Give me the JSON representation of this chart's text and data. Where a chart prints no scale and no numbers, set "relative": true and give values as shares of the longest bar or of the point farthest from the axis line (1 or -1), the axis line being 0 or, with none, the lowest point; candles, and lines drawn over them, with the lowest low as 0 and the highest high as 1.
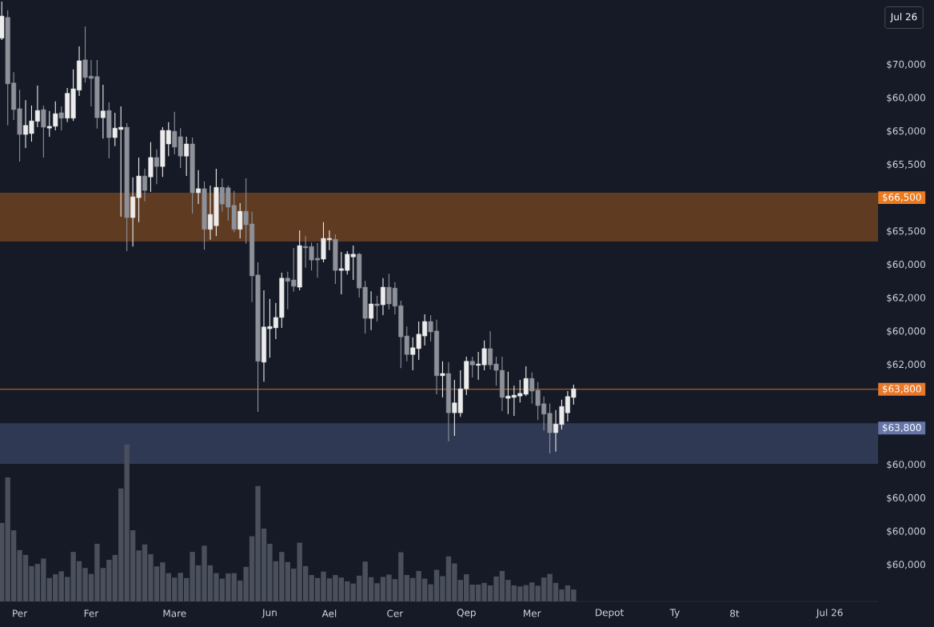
{
  "chart_data": [
    {
      "type": "candlestick",
      "relative": true,
      "categories": [
        null,
        null,
        null,
        null,
        null,
        null,
        null,
        null,
        null,
        null,
        null,
        null,
        null,
        null,
        null,
        null,
        null,
        null,
        null,
        null,
        null,
        null,
        null,
        null,
        null,
        null,
        null,
        null,
        null,
        null,
        null,
        null,
        null,
        null,
        null,
        null,
        null,
        null,
        null,
        null,
        null,
        null,
        null,
        null,
        null,
        null,
        null,
        null,
        null,
        null,
        null,
        null,
        null,
        null,
        null,
        null,
        null,
        null,
        null,
        null,
        null,
        null,
        null,
        null,
        null,
        null,
        null,
        null,
        null,
        null,
        null,
        null,
        null,
        null,
        null,
        null,
        null,
        null,
        null,
        null,
        null,
        null,
        null,
        null,
        null,
        null,
        null,
        null,
        null,
        null,
        null,
        null,
        null,
        null,
        null,
        null,
        null,
        null,
        null,
        null,
        null,
        null,
        null,
        null,
        null,
        null,
        null,
        null,
        null,
        null,
        null,
        null,
        null,
        null,
        null,
        null,
        null,
        null,
        null,
        null,
        null,
        null,
        null,
        null,
        null,
        null,
        null,
        null,
        null,
        null,
        null,
        null,
        null,
        null,
        null,
        null,
        null,
        null,
        null,
        null,
        null,
        null,
        null,
        null,
        null,
        null,
        null
      ],
      "ohlc": [
        [
          0.919,
          1.0,
          0.915,
          0.968
        ],
        [
          0.965,
          0.981,
          0.726,
          0.818
        ],
        [
          0.82,
          0.844,
          0.738,
          0.761
        ],
        [
          0.763,
          0.805,
          0.646,
          0.706
        ],
        [
          0.706,
          0.782,
          0.676,
          0.726
        ],
        [
          0.708,
          0.77,
          0.69,
          0.736
        ],
        [
          0.735,
          0.814,
          0.722,
          0.759
        ],
        [
          0.761,
          0.77,
          0.655,
          0.722
        ],
        [
          0.72,
          0.758,
          0.701,
          0.724
        ],
        [
          0.724,
          0.779,
          0.715,
          0.752
        ],
        [
          0.754,
          0.768,
          0.715,
          0.742
        ],
        [
          0.742,
          0.809,
          0.733,
          0.797
        ],
        [
          0.742,
          0.85,
          0.736,
          0.807
        ],
        [
          0.804,
          0.901,
          0.791,
          0.869
        ],
        [
          0.871,
          0.945,
          0.821,
          0.832
        ],
        [
          0.835,
          0.871,
          0.768,
          0.83
        ],
        [
          0.834,
          0.871,
          0.719,
          0.743
        ],
        [
          0.743,
          0.816,
          0.697,
          0.758
        ],
        [
          0.759,
          0.777,
          0.653,
          0.699
        ],
        [
          0.699,
          0.754,
          0.68,
          0.72
        ],
        [
          0.717,
          0.768,
          0.524,
          0.722
        ],
        [
          0.722,
          0.731,
          0.448,
          0.522
        ],
        [
          0.522,
          0.611,
          0.458,
          0.568
        ],
        [
          0.566,
          0.655,
          0.512,
          0.614
        ],
        [
          0.614,
          0.63,
          0.558,
          0.582
        ],
        [
          0.612,
          0.689,
          0.579,
          0.655
        ],
        [
          0.655,
          0.673,
          0.596,
          0.635
        ],
        [
          0.635,
          0.722,
          0.612,
          0.715
        ],
        [
          0.685,
          0.733,
          0.658,
          0.715
        ],
        [
          0.713,
          0.756,
          0.662,
          0.678
        ],
        [
          0.701,
          0.72,
          0.632,
          0.658
        ],
        [
          0.658,
          0.701,
          0.614,
          0.685
        ],
        [
          0.685,
          0.699,
          0.531,
          0.577
        ],
        [
          0.577,
          0.627,
          0.552,
          0.586
        ],
        [
          0.586,
          0.602,
          0.451,
          0.496
        ],
        [
          0.496,
          0.593,
          0.473,
          0.529
        ],
        [
          0.504,
          0.63,
          0.481,
          0.589
        ],
        [
          0.589,
          0.609,
          0.535,
          0.552
        ],
        [
          0.588,
          0.593,
          0.515,
          0.545
        ],
        [
          0.549,
          0.581,
          0.49,
          0.496
        ],
        [
          0.496,
          0.554,
          0.476,
          0.536
        ],
        [
          0.536,
          0.609,
          0.464,
          0.506
        ],
        [
          0.508,
          0.535,
          0.335,
          0.393
        ],
        [
          0.395,
          0.423,
          0.092,
          0.204
        ],
        [
          0.202,
          0.361,
          0.159,
          0.28
        ],
        [
          0.276,
          0.342,
          0.212,
          0.281
        ],
        [
          0.278,
          0.333,
          0.253,
          0.301
        ],
        [
          0.301,
          0.4,
          0.278,
          0.388
        ],
        [
          0.388,
          0.402,
          0.319,
          0.381
        ],
        [
          0.384,
          0.455,
          0.358,
          0.37
        ],
        [
          0.368,
          0.494,
          0.361,
          0.46
        ],
        [
          0.458,
          0.481,
          0.411,
          0.455
        ],
        [
          0.458,
          0.467,
          0.405,
          0.428
        ],
        [
          0.432,
          0.466,
          0.389,
          0.428
        ],
        [
          0.43,
          0.512,
          0.423,
          0.476
        ],
        [
          0.473,
          0.494,
          0.45,
          0.476
        ],
        [
          0.474,
          0.485,
          0.375,
          0.405
        ],
        [
          0.405,
          0.446,
          0.352,
          0.409
        ],
        [
          0.405,
          0.448,
          0.396,
          0.441
        ],
        [
          0.435,
          0.46,
          0.384,
          0.441
        ],
        [
          0.441,
          0.444,
          0.345,
          0.366
        ],
        [
          0.368,
          0.382,
          0.265,
          0.299
        ],
        [
          0.299,
          0.359,
          0.273,
          0.331
        ],
        [
          0.331,
          0.349,
          0.292,
          0.327
        ],
        [
          0.329,
          0.388,
          0.306,
          0.368
        ],
        [
          0.368,
          0.398,
          0.319,
          0.331
        ],
        [
          0.366,
          0.379,
          0.308,
          0.326
        ],
        [
          0.327,
          0.338,
          0.189,
          0.258
        ],
        [
          0.26,
          0.281,
          0.204,
          0.219
        ],
        [
          0.219,
          0.257,
          0.184,
          0.234
        ],
        [
          0.232,
          0.292,
          0.207,
          0.264
        ],
        [
          0.26,
          0.308,
          0.239,
          0.292
        ],
        [
          0.292,
          0.306,
          0.248,
          0.269
        ],
        [
          0.271,
          0.296,
          0.131,
          0.172
        ],
        [
          0.172,
          0.204,
          0.124,
          0.177
        ],
        [
          0.177,
          0.202,
          0.027,
          0.09
        ],
        [
          0.09,
          0.163,
          0.039,
          0.112
        ],
        [
          0.09,
          0.184,
          0.081,
          0.143
        ],
        [
          0.143,
          0.214,
          0.129,
          0.204
        ],
        [
          0.204,
          0.214,
          0.168,
          0.196
        ],
        [
          0.195,
          0.225,
          0.163,
          0.198
        ],
        [
          0.196,
          0.25,
          0.184,
          0.232
        ],
        [
          0.232,
          0.271,
          0.186,
          0.196
        ],
        [
          0.198,
          0.214,
          0.15,
          0.184
        ],
        [
          0.184,
          0.214,
          0.094,
          0.124
        ],
        [
          0.122,
          0.181,
          0.087,
          0.127
        ],
        [
          0.124,
          0.15,
          0.083,
          0.129
        ],
        [
          0.127,
          0.163,
          0.113,
          0.133
        ],
        [
          0.131,
          0.193,
          0.127,
          0.166
        ],
        [
          0.166,
          0.179,
          0.11,
          0.138
        ],
        [
          0.14,
          0.158,
          0.074,
          0.106
        ],
        [
          0.11,
          0.126,
          0.051,
          0.087
        ],
        [
          0.089,
          0.11,
          0.0,
          0.046
        ],
        [
          0.046,
          0.096,
          0.004,
          0.065
        ],
        [
          0.064,
          0.119,
          0.053,
          0.104
        ],
        [
          0.09,
          0.138,
          0.071,
          0.126
        ],
        [
          0.124,
          0.152,
          0.108,
          0.143
        ],
        null,
        null,
        null,
        null,
        null,
        null,
        null,
        null,
        null,
        null,
        null,
        null,
        null,
        null,
        null,
        null,
        null,
        null,
        null,
        null,
        null,
        null,
        null,
        null,
        null,
        null,
        null,
        null,
        null,
        null,
        null,
        null,
        null,
        null,
        null,
        null,
        null,
        null,
        null,
        null,
        null,
        null,
        null,
        null,
        null,
        null,
        null,
        null,
        null,
        null
      ],
      "colors": [
        "#ececec",
        "#8e9199",
        "#8e9199",
        "#8e9199",
        "#ececec",
        "#ececec",
        "#ececec",
        "#8e9199",
        "#ececec",
        "#ececec",
        "#8e9199",
        "#ececec",
        "#ececec",
        "#ececec",
        "#8e9199",
        "#8e9199",
        "#8e9199",
        "#ececec",
        "#8e9199",
        "#ececec",
        "#ececec",
        "#8e9199",
        "#ececec",
        "#ececec",
        "#8e9199",
        "#ececec",
        "#8e9199",
        "#ececec",
        "#ececec",
        "#8e9199",
        "#8e9199",
        "#ececec",
        "#8e9199",
        "#ececec",
        "#8e9199",
        "#ececec",
        "#ececec",
        "#8e9199",
        "#8e9199",
        "#8e9199",
        "#ececec",
        "#8e9199",
        "#8e9199",
        "#8e9199",
        "#ececec",
        "#ececec",
        "#ececec",
        "#ececec",
        "#8e9199",
        "#8e9199",
        "#ececec",
        "#8e9199",
        "#8e9199",
        "#8e9199",
        "#ececec",
        "#ececec",
        "#8e9199",
        "#ececec",
        "#ececec",
        "#ececec",
        "#8e9199",
        "#8e9199",
        "#ececec",
        "#8e9199",
        "#ececec",
        "#8e9199",
        "#8e9199",
        "#8e9199",
        "#8e9199",
        "#ececec",
        "#ececec",
        "#ececec",
        "#8e9199",
        "#8e9199",
        "#ececec",
        "#8e9199",
        "#ececec",
        "#ececec",
        "#ececec",
        "#8e9199",
        "#ececec",
        "#ececec",
        "#8e9199",
        "#8e9199",
        "#8e9199",
        "#ececec",
        "#ececec",
        "#ececec",
        "#ececec",
        "#8e9199",
        "#8e9199",
        "#8e9199",
        "#8e9199",
        "#ececec",
        "#ececec",
        "#ececec",
        "#ececec",
        null,
        null,
        null,
        null,
        null,
        null,
        null,
        null,
        null,
        null,
        null,
        null,
        null,
        null,
        null,
        null,
        null,
        null,
        null,
        null,
        null,
        null,
        null,
        null,
        null,
        null,
        null,
        null,
        null,
        null,
        null,
        null,
        null,
        null,
        null,
        null,
        null,
        null,
        null,
        null,
        null,
        null,
        null,
        null,
        null,
        null,
        null,
        null,
        null,
        null
      ],
      "bands": [
        {
          "axis": "y",
          "from": 0.469,
          "to": 0.577,
          "label": "$66,500",
          "color": "#ec7a1e"
        },
        {
          "axis": "y",
          "from": -0.023,
          "to": 0.067,
          "label": "$63,800",
          "color": "#6475a8"
        }
      ],
      "ref_lines": [
        {
          "axis": "y",
          "value": 0.142,
          "color": "#e8782a"
        }
      ],
      "annotations": [
        "Jul 26",
        "$70,000",
        "$60,000",
        "$65,000",
        "$65,500",
        "$65,500",
        "$60,000",
        "$62,000",
        "$60,000",
        "$62,000",
        "$63,800",
        "$60,000",
        "$60,000",
        "$60,000",
        "$60,000"
      ]
    },
    {
      "type": "bar",
      "relative": true,
      "categories": [
        null,
        null,
        null,
        "Per",
        null,
        null,
        null,
        null,
        null,
        null,
        null,
        null,
        null,
        null,
        null,
        "Fer",
        null,
        null,
        null,
        null,
        null,
        null,
        null,
        null,
        null,
        null,
        null,
        null,
        null,
        "Mare",
        null,
        null,
        null,
        null,
        null,
        null,
        null,
        null,
        null,
        null,
        null,
        null,
        null,
        null,
        null,
        "Jun",
        null,
        null,
        null,
        null,
        null,
        null,
        null,
        null,
        null,
        "Ael",
        null,
        null,
        null,
        null,
        null,
        null,
        null,
        null,
        null,
        null,
        "Cer",
        null,
        null,
        null,
        null,
        null,
        null,
        null,
        null,
        null,
        null,
        null,
        "Qep",
        null,
        null,
        null,
        null,
        null,
        null,
        null,
        null,
        null,
        null,
        "Mer",
        null,
        null,
        null,
        null,
        null,
        null,
        null,
        null,
        null,
        null,
        null,
        null,
        "Depot",
        null,
        null,
        null,
        null,
        null,
        null,
        null,
        null,
        null,
        null,
        "Ty",
        null,
        null,
        null,
        null,
        null,
        null,
        null,
        null,
        null,
        "8t",
        null,
        null,
        null,
        null,
        null,
        null,
        null,
        null,
        null,
        null,
        null,
        null,
        null,
        null,
        null,
        "Jul 26",
        null,
        null,
        null,
        null,
        null,
        null,
        null
      ],
      "values": [
        0.5,
        0.789,
        0.453,
        0.327,
        0.296,
        0.225,
        0.239,
        0.273,
        0.149,
        0.173,
        0.192,
        0.156,
        0.315,
        0.256,
        0.213,
        0.175,
        0.367,
        0.213,
        0.265,
        0.296,
        0.72,
        1.0,
        0.453,
        0.325,
        0.363,
        0.301,
        0.223,
        0.249,
        0.18,
        0.152,
        0.182,
        0.149,
        0.315,
        0.23,
        0.355,
        0.23,
        0.18,
        0.145,
        0.178,
        0.18,
        0.133,
        0.22,
        0.415,
        0.735,
        0.464,
        0.367,
        0.256,
        0.315,
        0.251,
        0.209,
        0.374,
        0.225,
        0.168,
        0.149,
        0.19,
        0.147,
        0.168,
        0.152,
        0.128,
        0.114,
        0.164,
        0.254,
        0.154,
        0.116,
        0.156,
        0.171,
        0.142,
        0.313,
        0.168,
        0.149,
        0.194,
        0.145,
        0.109,
        0.201,
        0.161,
        0.287,
        0.242,
        0.137,
        0.173,
        0.107,
        0.107,
        0.118,
        0.102,
        0.159,
        0.194,
        0.137,
        0.102,
        0.095,
        0.104,
        0.121,
        0.1,
        0.152,
        0.175,
        0.118,
        0.076,
        0.102,
        0.076,
        null,
        null,
        null,
        null,
        null,
        null,
        null,
        null,
        null,
        null,
        null,
        null,
        null,
        null,
        null,
        null,
        null,
        null,
        null,
        null,
        null,
        null,
        null,
        null,
        null,
        null,
        null,
        null,
        null,
        null,
        null,
        null,
        null,
        null,
        null,
        null,
        null,
        null,
        null,
        null,
        null,
        null,
        null,
        null,
        null,
        null,
        null,
        null,
        null,
        null
      ],
      "color": "#4a4f5c",
      "tick_labels": "x"
    }
  ]
}
